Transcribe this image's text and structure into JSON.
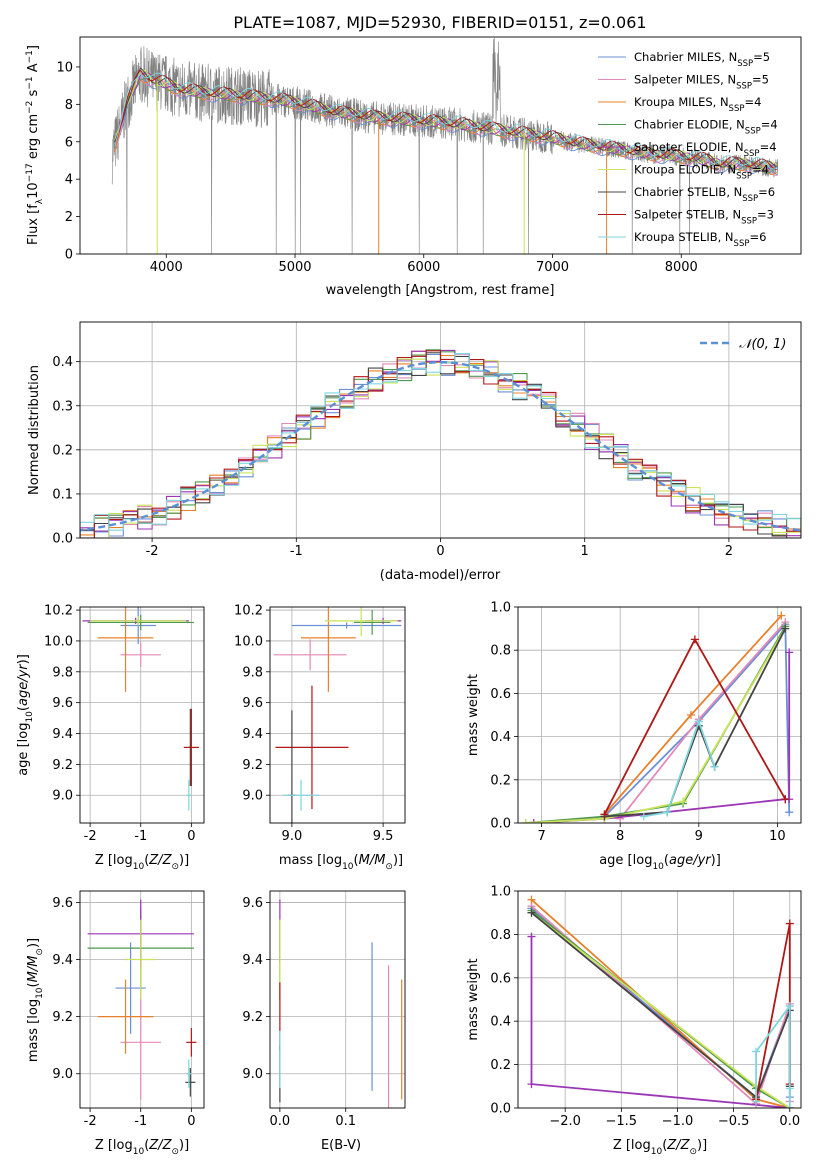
{
  "figure": {
    "title": "PLATE=1087, MJD=52930, FIBERID=0151, z=0.061"
  },
  "series": [
    {
      "name": "Chabrier MILES, N$_{SSP}$=5",
      "label_main": "Chabrier MILES, N",
      "label_sub": "SSP",
      "label_end": "=5",
      "color": "#6b8fd6"
    },
    {
      "name": "Salpeter MILES, N$_{SSP}$=5",
      "label_main": "Salpeter MILES, N",
      "label_sub": "SSP",
      "label_end": "=5",
      "color": "#e389b9"
    },
    {
      "name": "Kroupa MILES, N$_{SSP}$=4",
      "label_main": "Kroupa MILES, N",
      "label_sub": "SSP",
      "label_end": "=4",
      "color": "#e8802c"
    },
    {
      "name": "Chabrier ELODIE, N$_{SSP}$=4",
      "label_main": "Chabrier ELODIE, N",
      "label_sub": "SSP",
      "label_end": "=4",
      "color": "#4f9a4f"
    },
    {
      "name": "Salpeter ELODIE, N$_{SSP}$=4",
      "label_main": "Salpeter ELODIE, N",
      "label_sub": "SSP",
      "label_end": "=4",
      "color": "#9b35b5"
    },
    {
      "name": "Kroupa ELODIE, N$_{SSP}$=4",
      "label_main": "Kroupa ELODIE, N",
      "label_sub": "SSP",
      "label_end": "=4",
      "color": "#c9e45a"
    },
    {
      "name": "Chabrier STELIB, N$_{SSP}$=6",
      "label_main": "Chabrier STELIB, N",
      "label_sub": "SSP",
      "label_end": "=6",
      "color": "#444444"
    },
    {
      "name": "Salpeter STELIB, N$_{SSP}$=3",
      "label_main": "Salpeter STELIB, N",
      "label_sub": "SSP",
      "label_end": "=3",
      "color": "#b01717"
    },
    {
      "name": "Kroupa STELIB, N$_{SSP}$=6",
      "label_main": "Kroupa STELIB, N",
      "label_sub": "SSP",
      "label_end": "=6",
      "color": "#7fd6dd"
    }
  ],
  "chart_data": [
    {
      "id": "spectrum",
      "type": "line",
      "xlabel": "wavelength [Angstrom, rest frame]",
      "ylabel_main": "Flux [f",
      "ylabel_sub": "λ",
      "ylabel_rest": "10",
      "ylabel_sup1": "−17",
      "ylabel_rest2": " erg cm",
      "ylabel_sup2": "−2",
      "ylabel_rest3": " s",
      "ylabel_sup3": "−1",
      "ylabel_rest4": " A",
      "ylabel_sup4": "−1",
      "ylabel_rest5": "]",
      "xlim": [
        3330,
        8930
      ],
      "ylim": [
        0,
        11.6
      ],
      "xticks": [
        4000,
        5000,
        6000,
        7000,
        8000
      ],
      "yticks": [
        0,
        2,
        4,
        6,
        8,
        10
      ],
      "data_color": "#808080",
      "continuum": {
        "x": [
          3600,
          3700,
          3800,
          3900,
          4000,
          4100,
          4300,
          4500,
          4800,
          5000,
          5300,
          5600,
          6000,
          6300,
          6600,
          7000,
          7200,
          7400,
          7600,
          7800,
          8000,
          8200,
          8300,
          8500,
          8700
        ],
        "y": [
          5.8,
          8.2,
          9.6,
          9.3,
          9.1,
          8.8,
          8.6,
          8.5,
          8.3,
          8.1,
          7.6,
          7.3,
          7.1,
          6.9,
          6.6,
          6.2,
          5.9,
          5.7,
          5.5,
          5.3,
          5.2,
          5.0,
          4.8,
          4.8,
          4.6
        ]
      }
    },
    {
      "id": "residuals",
      "type": "histogram",
      "xlabel": "(data-model)/error",
      "ylabel": "Normed distribution",
      "xlim": [
        -2.5,
        2.5
      ],
      "ylim": [
        0,
        0.49
      ],
      "xticks": [
        -2,
        -1,
        0,
        1,
        2
      ],
      "yticks": [
        0.0,
        0.1,
        0.2,
        0.3,
        0.4
      ],
      "bin_width": 0.1,
      "legend_label": "𝒩(0, 1)",
      "normal_color": "#5b8fd6"
    },
    {
      "id": "age_vs_Z",
      "type": "errorbar",
      "xlabel": "Z [log10(Z/Z⊙)]",
      "ylabel": "age  [log10(age/yr)]",
      "xlim": [
        -2.2,
        0.25
      ],
      "ylim": [
        8.82,
        10.22
      ],
      "xticks": [
        -2,
        -1,
        0
      ],
      "yticks": [
        9.0,
        9.2,
        9.4,
        9.6,
        9.8,
        10.0,
        10.2
      ],
      "points": [
        {
          "series": 0,
          "x": -1.05,
          "xerr": 0.35,
          "y": 10.1,
          "yerr": 0.12
        },
        {
          "series": 1,
          "x": -1.0,
          "xerr": 0.4,
          "y": 9.91,
          "yerr": 0.08
        },
        {
          "series": 2,
          "x": -1.3,
          "xerr": 0.55,
          "y": 10.02,
          "yerr": 0.35
        },
        {
          "series": 3,
          "x": -1.0,
          "xerr": 1.05,
          "y": 10.12,
          "yerr": 0.05
        },
        {
          "series": 4,
          "x": -1.1,
          "xerr": 1.05,
          "y": 10.13,
          "yerr": 0.02
        },
        {
          "series": 5,
          "x": -1.05,
          "xerr": 0.95,
          "y": 10.13,
          "yerr": 0.03
        },
        {
          "series": 6,
          "x": -0.02,
          "xerr": 0.03,
          "y": 9.31,
          "yerr": 0.25
        },
        {
          "series": 7,
          "x": 0.0,
          "xerr": 0.15,
          "y": 9.31,
          "yerr": 0.25
        },
        {
          "series": 8,
          "x": -0.05,
          "xerr": 0.05,
          "y": 9.0,
          "yerr": 0.1
        }
      ]
    },
    {
      "id": "age_vs_mass",
      "type": "errorbar",
      "xlabel": "mass [log10(M/M⊙)]",
      "ylabel": "",
      "xlim": [
        8.88,
        9.62
      ],
      "ylim": [
        8.82,
        10.22
      ],
      "xticks": [
        9.0,
        9.5
      ],
      "yticks": [
        9.0,
        9.2,
        9.4,
        9.6,
        9.8,
        10.0,
        10.2
      ],
      "points": [
        {
          "series": 0,
          "x": 9.3,
          "xerr": 0.3,
          "y": 10.1,
          "yerr": 0.02
        },
        {
          "series": 1,
          "x": 9.1,
          "xerr": 0.2,
          "y": 9.91,
          "yerr": 0.1
        },
        {
          "series": 2,
          "x": 9.2,
          "xerr": 0.15,
          "y": 10.02,
          "yerr": 0.35
        },
        {
          "series": 3,
          "x": 9.44,
          "xerr": 0.1,
          "y": 10.12,
          "yerr": 0.08
        },
        {
          "series": 4,
          "x": 9.5,
          "xerr": 0.1,
          "y": 10.13,
          "yerr": 0.02
        },
        {
          "series": 5,
          "x": 9.38,
          "xerr": 0.2,
          "y": 10.13,
          "yerr": 0.1
        },
        {
          "series": 6,
          "x": 9.0,
          "xerr": 0.02,
          "y": 9.0,
          "yerr": 0.55
        },
        {
          "series": 7,
          "x": 9.11,
          "xerr": 0.2,
          "y": 9.31,
          "yerr": 0.4
        },
        {
          "series": 8,
          "x": 9.05,
          "xerr": 0.1,
          "y": 9.0,
          "yerr": 0.1
        }
      ]
    },
    {
      "id": "weight_vs_age",
      "type": "line",
      "xlabel": "age  [log10(age/yr)]",
      "ylabel": "mass weight",
      "xlim": [
        6.7,
        10.3
      ],
      "ylim": [
        0,
        1.0
      ],
      "xticks": [
        7,
        8,
        9,
        10
      ],
      "yticks": [
        0.0,
        0.2,
        0.4,
        0.6,
        0.8,
        1.0
      ],
      "lines": [
        {
          "series": 0,
          "x": [
            7.8,
            9.0,
            10.1,
            10.15
          ],
          "y": [
            0.03,
            0.47,
            0.92,
            0.05
          ]
        },
        {
          "series": 1,
          "x": [
            7.8,
            8.0,
            9.0,
            10.1
          ],
          "y": [
            0.03,
            0.02,
            0.48,
            0.93
          ]
        },
        {
          "series": 2,
          "x": [
            7.8,
            8.9,
            10.05
          ],
          "y": [
            0.04,
            0.5,
            0.96
          ]
        },
        {
          "series": 3,
          "x": [
            6.8,
            7.8,
            8.8,
            10.1
          ],
          "y": [
            0.0,
            0.03,
            0.09,
            0.91
          ]
        },
        {
          "series": 4,
          "x": [
            6.9,
            7.8,
            10.1,
            10.15,
            10.15
          ],
          "y": [
            0.0,
            0.02,
            0.11,
            0.11,
            0.79
          ]
        },
        {
          "series": 5,
          "x": [
            6.8,
            7.8,
            8.8,
            10.1
          ],
          "y": [
            0.0,
            0.02,
            0.1,
            0.9
          ]
        },
        {
          "series": 6,
          "x": [
            7.8,
            8.6,
            9.0,
            9.2,
            10.1
          ],
          "y": [
            0.03,
            0.05,
            0.45,
            0.26,
            0.9
          ]
        },
        {
          "series": 7,
          "x": [
            7.8,
            8.95,
            10.1
          ],
          "y": [
            0.04,
            0.85,
            0.11
          ]
        },
        {
          "series": 8,
          "x": [
            8.3,
            8.6,
            9.0,
            9.2
          ],
          "y": [
            0.03,
            0.05,
            0.47,
            0.26
          ]
        }
      ]
    },
    {
      "id": "mass_vs_Z",
      "type": "errorbar",
      "xlabel": "Z [log10(Z/Z⊙)]",
      "ylabel": "mass [log10(M/M⊙)]",
      "xlim": [
        -2.2,
        0.25
      ],
      "ylim": [
        8.88,
        9.64
      ],
      "xticks": [
        -2,
        -1,
        0
      ],
      "yticks": [
        9.0,
        9.2,
        9.4,
        9.6
      ],
      "points": [
        {
          "series": 0,
          "x": -1.2,
          "xerr": 0.3,
          "y": 9.3,
          "yerr": 0.16
        },
        {
          "series": 1,
          "x": -1.0,
          "xerr": 0.4,
          "y": 9.11,
          "yerr": 0.2
        },
        {
          "series": 2,
          "x": -1.3,
          "xerr": 0.55,
          "y": 9.2,
          "yerr": 0.13
        },
        {
          "series": 3,
          "x": -1.0,
          "xerr": 1.05,
          "y": 9.44,
          "yerr": 0.14
        },
        {
          "series": 4,
          "x": -1.0,
          "xerr": 1.05,
          "y": 9.49,
          "yerr": 0.12
        },
        {
          "series": 5,
          "x": -1.0,
          "xerr": 0.3,
          "y": 9.4,
          "yerr": 0.14
        },
        {
          "series": 6,
          "x": -0.02,
          "xerr": 0.1,
          "y": 8.97,
          "yerr": 0.05
        },
        {
          "series": 7,
          "x": 0.0,
          "xerr": 0.1,
          "y": 9.11,
          "yerr": 0.05
        },
        {
          "series": 8,
          "x": -0.05,
          "xerr": 0.05,
          "y": 9.0,
          "yerr": 0.05
        }
      ]
    },
    {
      "id": "mass_vs_ebv",
      "type": "errorbar",
      "xlabel": "E(B-V)",
      "ylabel": "",
      "xlim": [
        -0.015,
        0.19
      ],
      "ylim": [
        8.88,
        9.64
      ],
      "xticks": [
        0.0,
        0.1
      ],
      "yticks": [
        9.0,
        9.2,
        9.4,
        9.6
      ],
      "points": [
        {
          "series": 0,
          "x": 0.14,
          "xerr": 0,
          "y": 9.2,
          "yerr": 0.26
        },
        {
          "series": 1,
          "x": 0.165,
          "xerr": 0,
          "y": 9.1,
          "yerr": 0.28
        },
        {
          "series": 2,
          "x": 0.185,
          "xerr": 0,
          "y": 9.12,
          "yerr": 0.21
        },
        {
          "series": 3,
          "x": 0.0,
          "xerr": 0,
          "y": 9.4,
          "yerr": 0.14
        },
        {
          "series": 4,
          "x": 0.0,
          "xerr": 0,
          "y": 9.5,
          "yerr": 0.11
        },
        {
          "series": 5,
          "x": 0.0,
          "xerr": 0,
          "y": 9.4,
          "yerr": 0.14
        },
        {
          "series": 6,
          "x": 0.0,
          "xerr": 0,
          "y": 9.0,
          "yerr": 0.1
        },
        {
          "series": 7,
          "x": 0.0,
          "xerr": 0,
          "y": 9.2,
          "yerr": 0.12
        },
        {
          "series": 8,
          "x": 0.0,
          "xerr": 0,
          "y": 9.05,
          "yerr": 0.1
        }
      ]
    },
    {
      "id": "weight_vs_Z",
      "type": "line",
      "xlabel": "Z [log10(Z/Z⊙)]",
      "ylabel": "mass weight",
      "xlim": [
        -2.42,
        0.1
      ],
      "ylim": [
        0,
        1.0
      ],
      "xticks": [
        -2.0,
        -1.5,
        -1.0,
        -0.5,
        0.0
      ],
      "yticks": [
        0.0,
        0.2,
        0.4,
        0.6,
        0.8,
        1.0
      ],
      "lines": [
        {
          "series": 0,
          "x": [
            -2.3,
            -0.3,
            0.0,
            0.0
          ],
          "y": [
            0.92,
            0.05,
            0.47,
            0.05
          ]
        },
        {
          "series": 1,
          "x": [
            -2.3,
            -0.3,
            0.0,
            0.0
          ],
          "y": [
            0.93,
            0.02,
            0.48,
            0.03
          ]
        },
        {
          "series": 2,
          "x": [
            -2.3,
            -0.3,
            0.0
          ],
          "y": [
            0.96,
            0.04,
            0.0
          ]
        },
        {
          "series": 3,
          "x": [
            -2.3,
            -0.3,
            0.0
          ],
          "y": [
            0.91,
            0.09,
            0.0
          ]
        },
        {
          "series": 4,
          "x": [
            -2.3,
            -2.3,
            0.0
          ],
          "y": [
            0.79,
            0.11,
            0.0
          ]
        },
        {
          "series": 5,
          "x": [
            -2.3,
            -0.3,
            0.0
          ],
          "y": [
            0.9,
            0.1,
            0.0
          ]
        },
        {
          "series": 6,
          "x": [
            -2.3,
            -0.3,
            0.0,
            0.0
          ],
          "y": [
            0.9,
            0.05,
            0.45,
            0.1
          ]
        },
        {
          "series": 7,
          "x": [
            -0.3,
            0.0,
            0.0
          ],
          "y": [
            0.04,
            0.85,
            0.11
          ]
        },
        {
          "series": 8,
          "x": [
            -0.3,
            -0.3,
            0.0,
            0.0,
            0.0
          ],
          "y": [
            0.03,
            0.26,
            0.47,
            0.09,
            0.0
          ]
        }
      ]
    }
  ]
}
